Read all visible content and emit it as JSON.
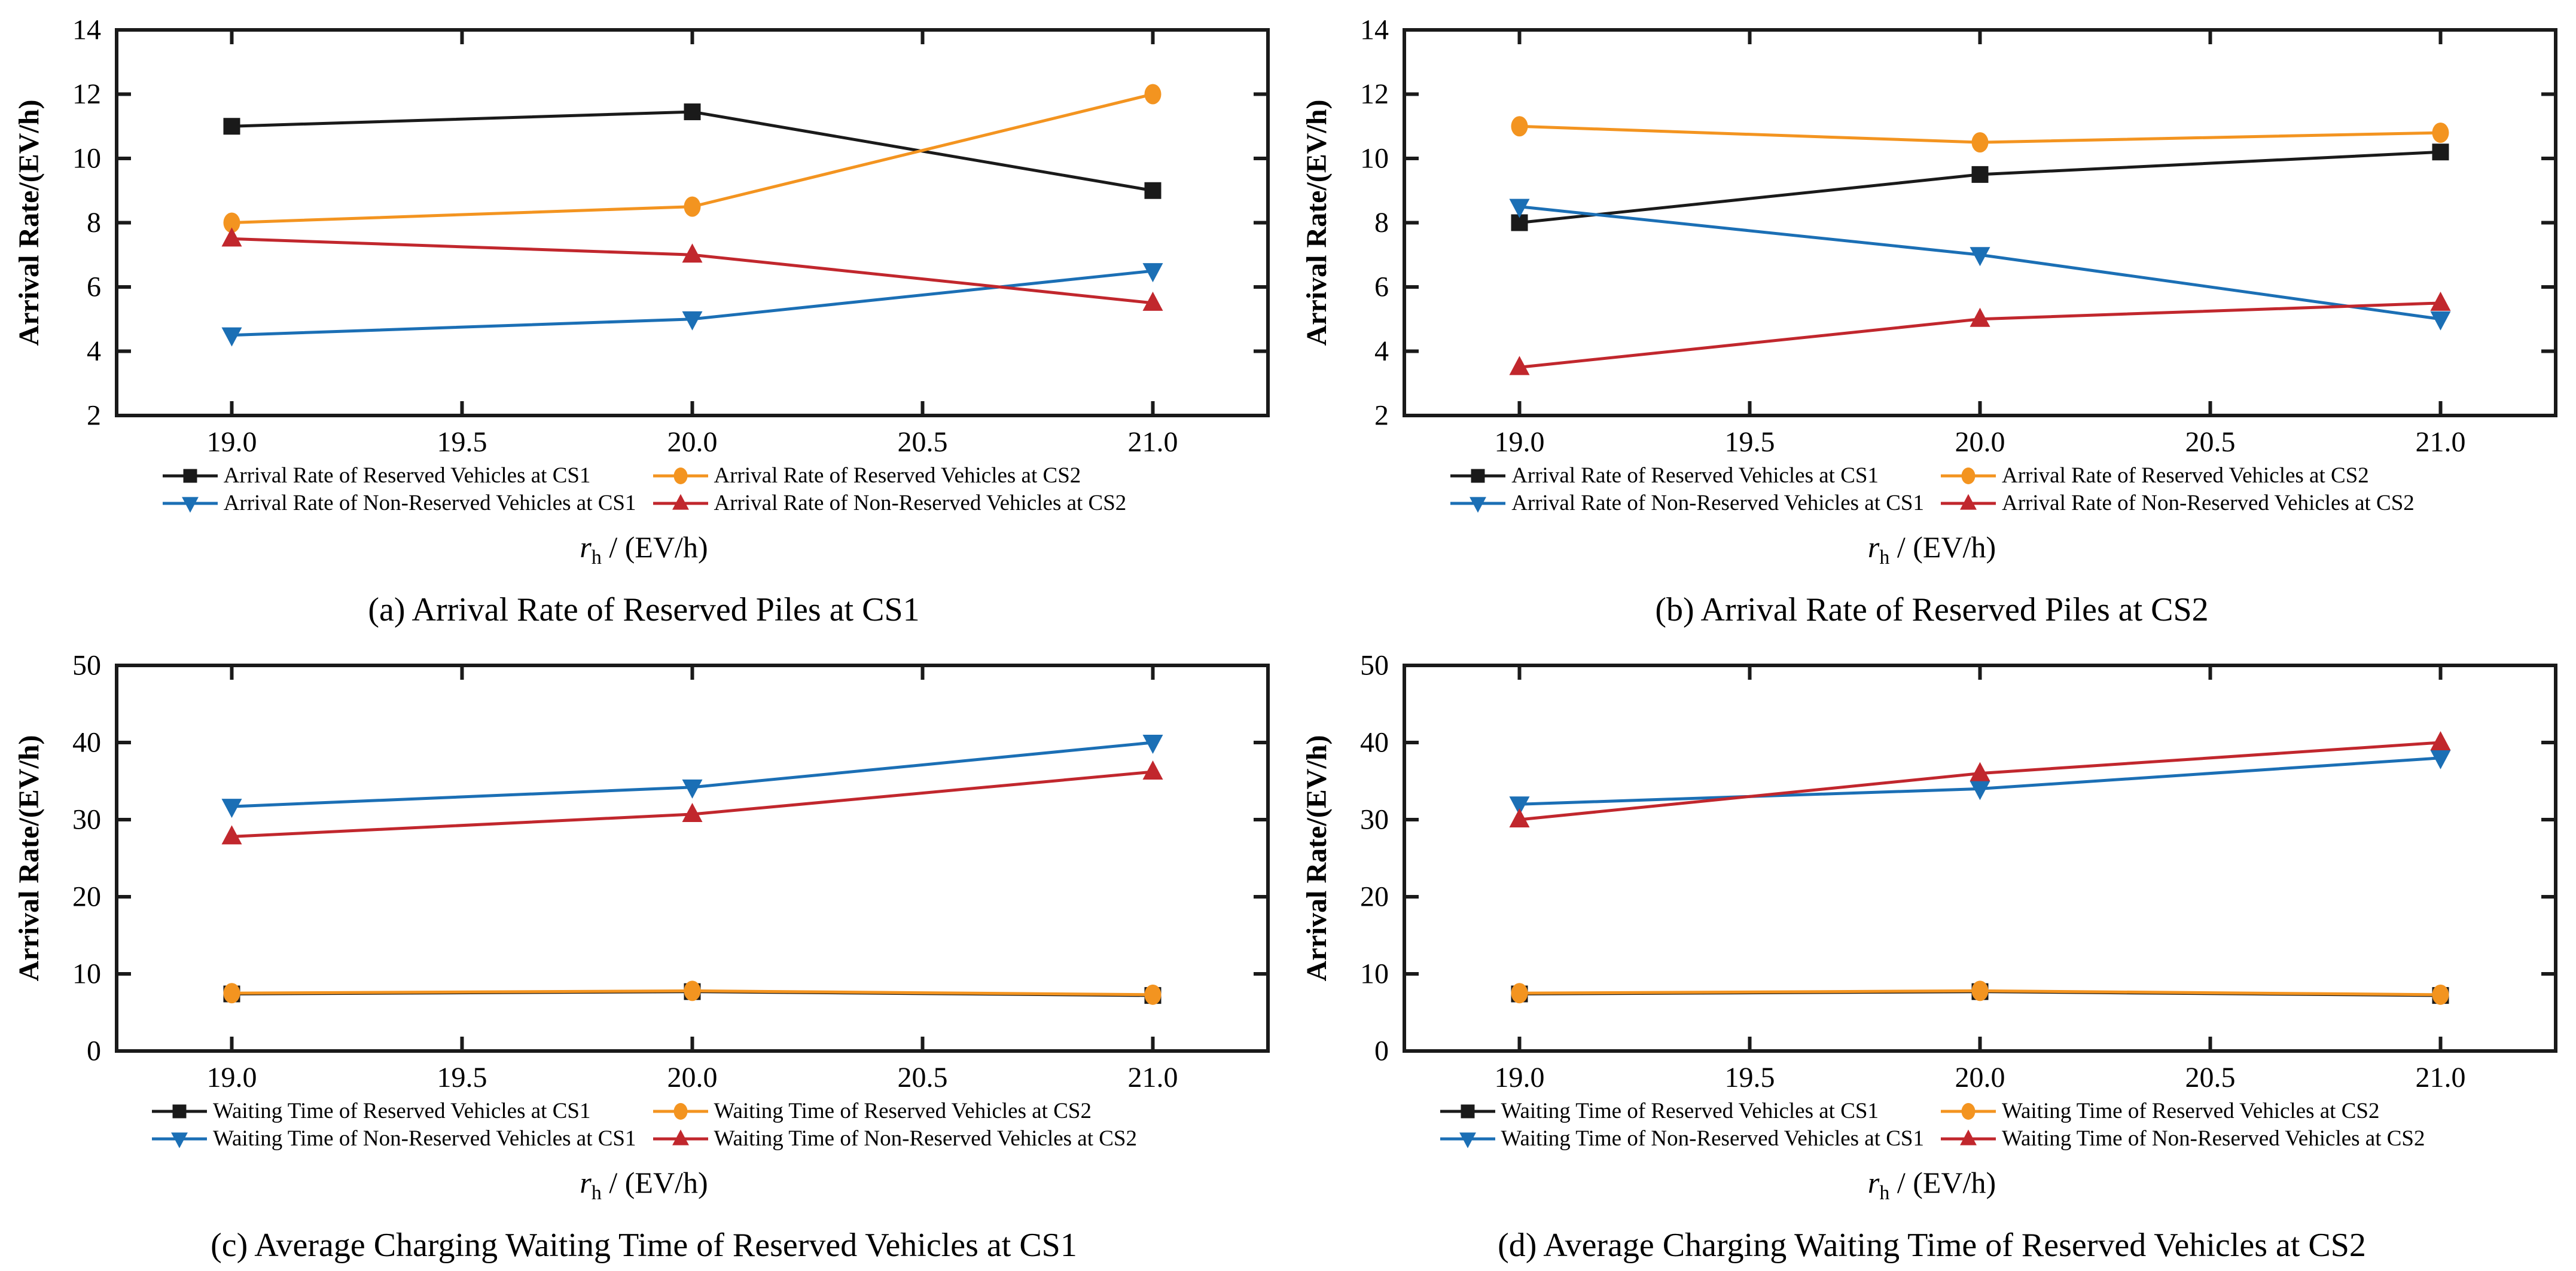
{
  "page": {
    "background": "#ffffff",
    "ink": "#1A1A1A"
  },
  "colors": {
    "black": "#1A1A1A",
    "orange": "#F39420",
    "blue": "#1B6FB5",
    "red": "#C1272D"
  },
  "chart_data": [
    {
      "id": "a",
      "type": "line",
      "caption": "(a) Arrival Rate of Reserved Piles at CS1",
      "ylabel": "Arrival Rate/(EV/h)",
      "xlabel": {
        "var": "r",
        "sub": "h",
        "rest": " / (EV/h)"
      },
      "x": [
        19.0,
        20.0,
        21.0
      ],
      "xlim": [
        18.75,
        21.25
      ],
      "xticks": [
        19.0,
        19.5,
        20.0,
        20.5,
        21.0
      ],
      "ylim": [
        2,
        14
      ],
      "yticks": [
        2,
        4,
        6,
        8,
        10,
        12,
        14
      ],
      "grid": false,
      "legend_position": "below",
      "legend_rows": [
        [
          0,
          1
        ],
        [
          2,
          3
        ]
      ],
      "series": [
        {
          "name": "Arrival Rate of Reserved Vehicles at CS1",
          "marker": "square",
          "color": "#1A1A1A",
          "values": [
            11,
            11.45,
            9
          ]
        },
        {
          "name": "Arrival Rate of Reserved Vehicles at CS2",
          "marker": "circle",
          "color": "#F39420",
          "values": [
            8,
            8.5,
            12
          ]
        },
        {
          "name": "Arrival Rate of Non-Reserved Vehicles at CS1",
          "marker": "triangle-down",
          "color": "#1B6FB5",
          "values": [
            4.5,
            5,
            6.5
          ]
        },
        {
          "name": "Arrival Rate of Non-Reserved Vehicles at CS2",
          "marker": "triangle-up",
          "color": "#C1272D",
          "values": [
            7.5,
            7,
            5.5
          ]
        }
      ]
    },
    {
      "id": "b",
      "type": "line",
      "caption": "(b) Arrival Rate of Reserved Piles at CS2",
      "ylabel": "Arrival Rate/(EV/h)",
      "xlabel": {
        "var": "r",
        "sub": "h",
        "rest": " / (EV/h)"
      },
      "x": [
        19.0,
        20.0,
        21.0
      ],
      "xlim": [
        18.75,
        21.25
      ],
      "xticks": [
        19.0,
        19.5,
        20.0,
        20.5,
        21.0
      ],
      "ylim": [
        2,
        14
      ],
      "yticks": [
        2,
        4,
        6,
        8,
        10,
        12,
        14
      ],
      "grid": false,
      "legend_position": "below",
      "legend_rows": [
        [
          0,
          1
        ],
        [
          2,
          3
        ]
      ],
      "series": [
        {
          "name": "Arrival Rate of Reserved Vehicles at CS1",
          "marker": "square",
          "color": "#1A1A1A",
          "values": [
            8,
            9.5,
            10.2
          ]
        },
        {
          "name": "Arrival Rate of Reserved Vehicles at CS2",
          "marker": "circle",
          "color": "#F39420",
          "values": [
            11,
            10.5,
            10.8
          ]
        },
        {
          "name": "Arrival Rate of Non-Reserved Vehicles at CS1",
          "marker": "triangle-down",
          "color": "#1B6FB5",
          "values": [
            8.5,
            7,
            5
          ]
        },
        {
          "name": "Arrival Rate of Non-Reserved Vehicles at CS2",
          "marker": "triangle-up",
          "color": "#C1272D",
          "values": [
            3.5,
            5,
            5.5
          ]
        }
      ]
    },
    {
      "id": "c",
      "type": "line",
      "caption": "(c) Average Charging Waiting Time of Reserved Vehicles at CS1",
      "ylabel": "Arrival Rate/(EV/h)",
      "xlabel": {
        "var": "r",
        "sub": "h",
        "rest": " / (EV/h)"
      },
      "x": [
        19.0,
        20.0,
        21.0
      ],
      "xlim": [
        18.75,
        21.25
      ],
      "xticks": [
        19.0,
        19.5,
        20.0,
        20.5,
        21.0
      ],
      "ylim": [
        0,
        50
      ],
      "yticks": [
        0,
        10,
        20,
        30,
        40,
        50
      ],
      "grid": false,
      "legend_position": "below",
      "legend_rows": [
        [
          0,
          1
        ],
        [
          2,
          3
        ]
      ],
      "series": [
        {
          "name": "Waiting Time of Reserved Vehicles at CS1",
          "marker": "square",
          "color": "#1A1A1A",
          "values": [
            7.4,
            7.7,
            7.2
          ]
        },
        {
          "name": "Waiting Time of Reserved Vehicles at CS2",
          "marker": "circle",
          "color": "#F39420",
          "values": [
            7.5,
            7.8,
            7.3
          ]
        },
        {
          "name": "Waiting Time of Non-Reserved Vehicles at CS1",
          "marker": "triangle-down",
          "color": "#1B6FB5",
          "values": [
            31.7,
            34.2,
            40
          ]
        },
        {
          "name": "Waiting Time of Non-Reserved Vehicles at CS2",
          "marker": "triangle-up",
          "color": "#C1272D",
          "values": [
            27.8,
            30.7,
            36.2
          ]
        }
      ]
    },
    {
      "id": "d",
      "type": "line",
      "caption": "(d) Average Charging Waiting Time of Reserved Vehicles at CS2",
      "ylabel": "Arrival Rate/(EV/h)",
      "xlabel": {
        "var": "r",
        "sub": "h",
        "rest": " / (EV/h)"
      },
      "x": [
        19.0,
        20.0,
        21.0
      ],
      "xlim": [
        18.75,
        21.25
      ],
      "xticks": [
        19.0,
        19.5,
        20.0,
        20.5,
        21.0
      ],
      "ylim": [
        0,
        50
      ],
      "yticks": [
        0,
        10,
        20,
        30,
        40,
        50
      ],
      "grid": false,
      "legend_position": "below",
      "legend_rows": [
        [
          0,
          1
        ],
        [
          2,
          3
        ]
      ],
      "series": [
        {
          "name": "Waiting Time of Reserved Vehicles at CS1",
          "marker": "square",
          "color": "#1A1A1A",
          "values": [
            7.4,
            7.7,
            7.2
          ]
        },
        {
          "name": "Waiting Time of Reserved Vehicles at CS2",
          "marker": "circle",
          "color": "#F39420",
          "values": [
            7.5,
            7.8,
            7.3
          ]
        },
        {
          "name": "Waiting Time of Non-Reserved Vehicles at CS1",
          "marker": "triangle-down",
          "color": "#1B6FB5",
          "values": [
            32,
            34,
            38
          ]
        },
        {
          "name": "Waiting Time of Non-Reserved Vehicles at CS2",
          "marker": "triangle-up",
          "color": "#C1272D",
          "values": [
            30,
            36,
            40
          ]
        }
      ]
    }
  ]
}
